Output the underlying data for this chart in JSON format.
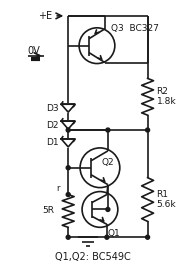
{
  "title": "Q1,Q2: BC549C",
  "q3_label": "Q3  BC327",
  "q2_label": "Q2",
  "q1_label": "Q1",
  "r2_label": "R2\n1.8k",
  "r1_label": "R1\n5.6k",
  "d3_label": "D3",
  "d2_label": "D2",
  "d1_label": "D1",
  "r_small_label": "r",
  "r5_label": "5R",
  "plus_e_label": "+E",
  "zero_v_label": "0V",
  "bg_color": "#ffffff",
  "line_color": "#1a1a1a",
  "line_width": 1.2,
  "font_size": 6.5
}
